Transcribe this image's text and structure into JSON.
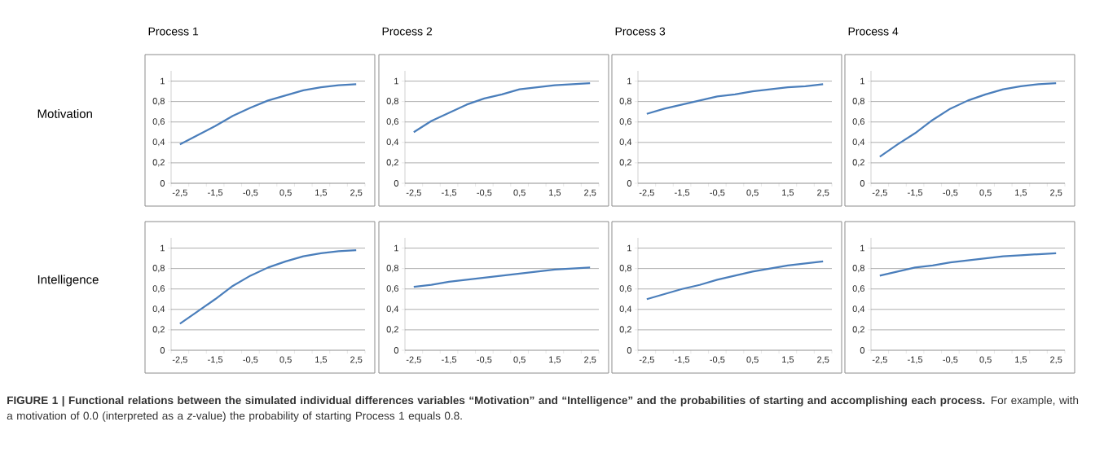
{
  "chart_data": [
    {
      "type": "line",
      "title": "Process 1",
      "ylabel": "Motivation",
      "categories": [
        "-2,5",
        null,
        "-1,5",
        null,
        "-0,5",
        null,
        "0,5",
        null,
        "1,5",
        null,
        "2,5"
      ],
      "values": [
        0.38,
        0.47,
        0.56,
        0.66,
        0.74,
        0.81,
        0.86,
        0.91,
        0.94,
        0.96,
        0.97
      ],
      "color": "#4a7ebb",
      "ylim": [
        0,
        1.1
      ],
      "yticks": [
        0,
        {
          "value": 0.2,
          "label": "0,2"
        },
        {
          "value": 0.4,
          "label": "0,4"
        },
        {
          "value": 0.6,
          "label": "0,6"
        },
        {
          "value": 0.8,
          "label": "0,8"
        },
        1
      ],
      "grid": "y",
      "annotations": [
        "**FIGURE 1 | Functional relations between the simulated individual differences variables “Motivation” and “Intelligence” and the probabilities of starting and accomplishing each process.** For example, with a motivation of 0.0 (interpreted as a *z*-value) the probability of starting Process 1 equals 0.8."
      ]
    },
    {
      "type": "line",
      "title": "Process 2",
      "categories": [
        "-2,5",
        null,
        "-1,5",
        null,
        "-0,5",
        null,
        "0,5",
        null,
        "1,5",
        null,
        "2,5"
      ],
      "values": [
        0.5,
        0.61,
        0.69,
        0.77,
        0.83,
        0.87,
        0.92,
        0.94,
        0.96,
        0.97,
        0.98
      ],
      "color": "#4a7ebb",
      "ylim": [
        0,
        1.1
      ],
      "yticks": [
        0,
        {
          "value": 0.2,
          "label": "0,2"
        },
        {
          "value": 0.4,
          "label": "0,4"
        },
        {
          "value": 0.6,
          "label": "0,6"
        },
        {
          "value": 0.8,
          "label": "0,8"
        },
        1
      ],
      "grid": "y"
    },
    {
      "type": "line",
      "title": "Process 3",
      "categories": [
        "-2,5",
        null,
        "-1,5",
        null,
        "-0,5",
        null,
        "0,5",
        null,
        "1,5",
        null,
        "2,5"
      ],
      "values": [
        0.68,
        0.73,
        0.77,
        0.81,
        0.85,
        0.87,
        0.9,
        0.92,
        0.94,
        0.95,
        0.97
      ],
      "color": "#4a7ebb",
      "ylim": [
        0,
        1.1
      ],
      "yticks": [
        0,
        {
          "value": 0.2,
          "label": "0,2"
        },
        {
          "value": 0.4,
          "label": "0,4"
        },
        {
          "value": 0.6,
          "label": "0,6"
        },
        {
          "value": 0.8,
          "label": "0,8"
        },
        1
      ],
      "grid": "y"
    },
    {
      "type": "line",
      "title": "Process 4",
      "categories": [
        "-2,5",
        null,
        "-1,5",
        null,
        "-0,5",
        null,
        "0,5",
        null,
        "1,5",
        null,
        "2,5"
      ],
      "values": [
        0.26,
        0.38,
        0.49,
        0.62,
        0.73,
        0.81,
        0.87,
        0.92,
        0.95,
        0.97,
        0.98
      ],
      "color": "#4a7ebb",
      "ylim": [
        0,
        1.1
      ],
      "yticks": [
        0,
        {
          "value": 0.2,
          "label": "0,2"
        },
        {
          "value": 0.4,
          "label": "0,4"
        },
        {
          "value": 0.6,
          "label": "0,6"
        },
        {
          "value": 0.8,
          "label": "0,8"
        },
        1
      ],
      "grid": "y"
    },
    {
      "type": "line",
      "ylabel": "Intelligence",
      "categories": [
        "-2,5",
        null,
        "-1,5",
        null,
        "-0,5",
        null,
        "0,5",
        null,
        "1,5",
        null,
        "2,5"
      ],
      "values": [
        0.26,
        0.38,
        0.5,
        0.63,
        0.73,
        0.81,
        0.87,
        0.92,
        0.95,
        0.97,
        0.98
      ],
      "color": "#4a7ebb",
      "ylim": [
        0,
        1.1
      ],
      "yticks": [
        0,
        {
          "value": 0.2,
          "label": "0,2"
        },
        {
          "value": 0.4,
          "label": "0,4"
        },
        {
          "value": 0.6,
          "label": "0,6"
        },
        {
          "value": 0.8,
          "label": "0,8"
        },
        1
      ],
      "grid": "y"
    },
    {
      "type": "line",
      "categories": [
        "-2,5",
        null,
        "-1,5",
        null,
        "-0,5",
        null,
        "0,5",
        null,
        "1,5",
        null,
        "2,5"
      ],
      "values": [
        0.62,
        0.64,
        0.67,
        0.69,
        0.71,
        0.73,
        0.75,
        0.77,
        0.79,
        0.8,
        0.81
      ],
      "color": "#4a7ebb",
      "ylim": [
        0,
        1.1
      ],
      "yticks": [
        0,
        {
          "value": 0.2,
          "label": "0,2"
        },
        {
          "value": 0.4,
          "label": "0,4"
        },
        {
          "value": 0.6,
          "label": "0,6"
        },
        {
          "value": 0.8,
          "label": "0,8"
        },
        1
      ],
      "grid": "y"
    },
    {
      "type": "line",
      "categories": [
        "-2,5",
        null,
        "-1,5",
        null,
        "-0,5",
        null,
        "0,5",
        null,
        "1,5",
        null,
        "2,5"
      ],
      "values": [
        0.5,
        0.55,
        0.6,
        0.64,
        0.69,
        0.73,
        0.77,
        0.8,
        0.83,
        0.85,
        0.87
      ],
      "color": "#4a7ebb",
      "ylim": [
        0,
        1.1
      ],
      "yticks": [
        0,
        {
          "value": 0.2,
          "label": "0,2"
        },
        {
          "value": 0.4,
          "label": "0,4"
        },
        {
          "value": 0.6,
          "label": "0,6"
        },
        {
          "value": 0.8,
          "label": "0,8"
        },
        1
      ],
      "grid": "y"
    },
    {
      "type": "line",
      "categories": [
        "-2,5",
        null,
        "-1,5",
        null,
        "-0,5",
        null,
        "0,5",
        null,
        "1,5",
        null,
        "2,5"
      ],
      "values": [
        0.73,
        0.77,
        0.81,
        0.83,
        0.86,
        0.88,
        0.9,
        0.92,
        0.93,
        0.94,
        0.95
      ],
      "color": "#4a7ebb",
      "ylim": [
        0,
        1.1
      ],
      "yticks": [
        0,
        {
          "value": 0.2,
          "label": "0,2"
        },
        {
          "value": 0.4,
          "label": "0,4"
        },
        {
          "value": 0.6,
          "label": "0,6"
        },
        {
          "value": 0.8,
          "label": "0,8"
        },
        1
      ],
      "grid": "y"
    }
  ]
}
